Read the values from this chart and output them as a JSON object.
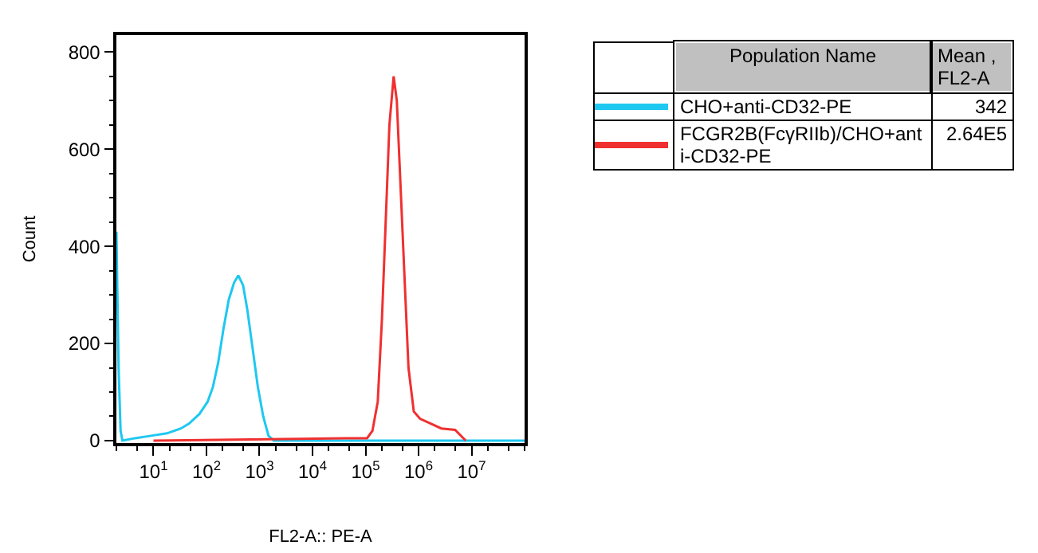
{
  "chart_data": {
    "type": "line",
    "xlabel": "FL2-A:: PE-A",
    "ylabel": "Count",
    "legend_title": "Population Name",
    "annotations": [
      "Mean , FL2-A",
      "342",
      "2.64E5"
    ],
    "log": "x",
    "xlim": [
      2,
      100000000
    ],
    "ylim": [
      -5,
      835
    ],
    "xticks": [
      {
        "value": 10,
        "label": "10$^{1}$"
      },
      {
        "value": 100,
        "label": "10$^{2}$"
      },
      {
        "value": 1000,
        "label": "10$^{3}$"
      },
      {
        "value": 10000,
        "label": "10$^{4}$"
      },
      {
        "value": 100000,
        "label": "10$^{5}$"
      },
      {
        "value": 1000000,
        "label": "10$^{6}$"
      },
      {
        "value": 10000000,
        "label": "10$^{7}$"
      }
    ],
    "yticks": [
      0,
      200,
      400,
      600,
      800
    ],
    "grid": false,
    "legend": "right",
    "marker": "none",
    "line_style": "solid",
    "series": [
      {
        "name": "CHO+anti-CD32-PE",
        "color": "#1ec8f0",
        "x": [
          2,
          2.2,
          2.4,
          2.6,
          4.5,
          9,
          18,
          33,
          47,
          74,
          105,
          132,
          166,
          209,
          263,
          331,
          398,
          490,
          589,
          741,
          933,
          1175,
          1479,
          1862,
          100000000
        ],
        "values": [
          430,
          150,
          20,
          0,
          5,
          10,
          15,
          25,
          35,
          55,
          80,
          110,
          160,
          230,
          290,
          325,
          340,
          320,
          270,
          190,
          110,
          50,
          10,
          0,
          0
        ]
      },
      {
        "name": "FCGR2B(FcγRIIb)/CHO+anti-CD32-PE",
        "color": "#f03030",
        "x": [
          10,
          43000,
          107000,
          135000,
          170000,
          204000,
          240000,
          282000,
          339000,
          389000,
          447000,
          537000,
          646000,
          813000,
          1070000,
          1700000,
          2690000,
          4900000,
          7760000
        ],
        "values": [
          0,
          5,
          5,
          20,
          80,
          250,
          450,
          650,
          750,
          700,
          550,
          350,
          150,
          60,
          45,
          35,
          25,
          22,
          0
        ]
      }
    ]
  }
}
